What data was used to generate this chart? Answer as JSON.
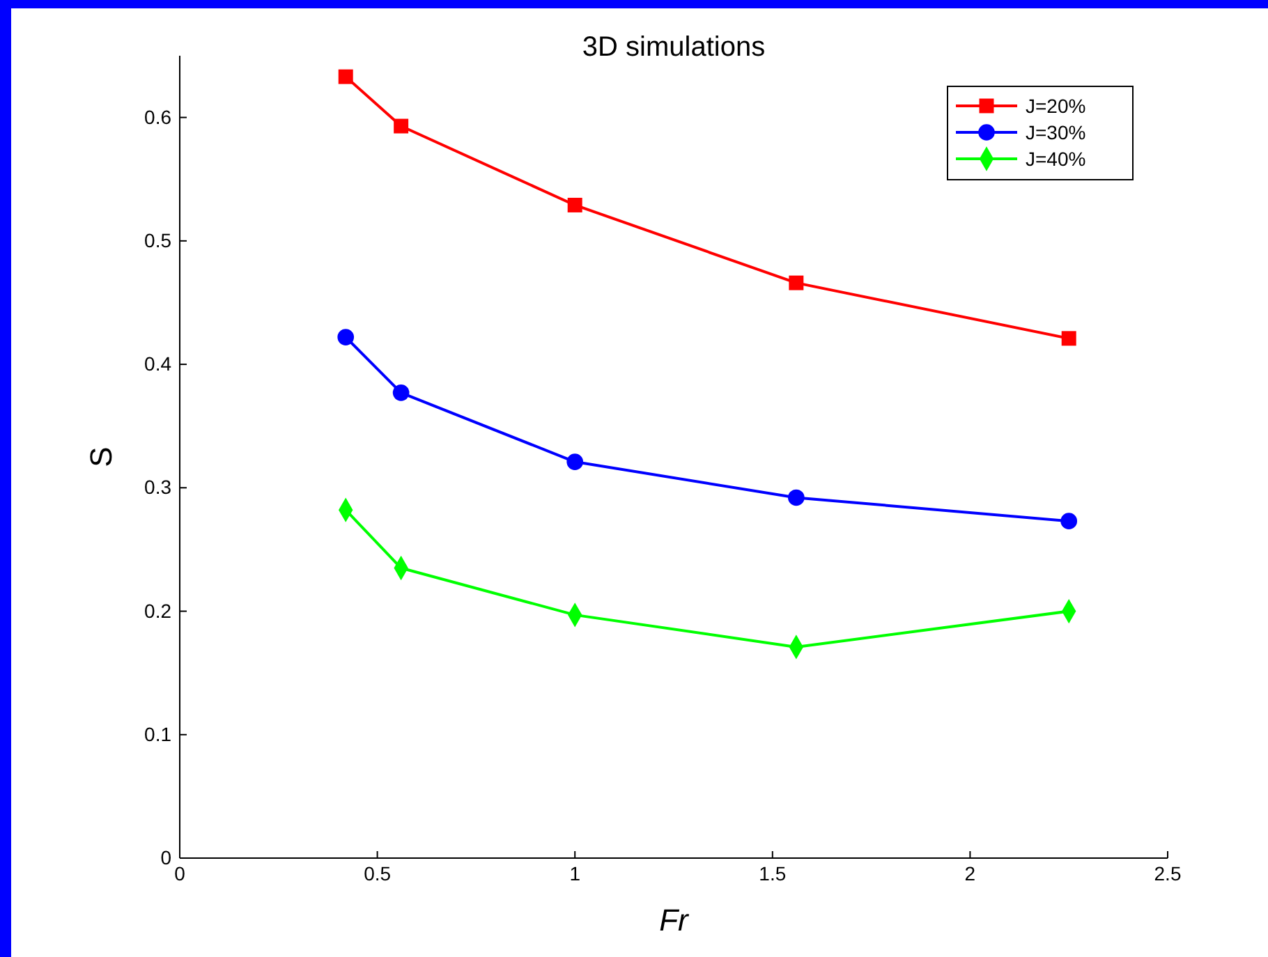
{
  "chart_data": {
    "type": "line",
    "title": "3D simulations",
    "xlabel": "Fr",
    "ylabel": "S",
    "xlim": [
      0,
      2.5
    ],
    "xticks": [
      0,
      0.5,
      1,
      1.5,
      2,
      2.5
    ],
    "ylim": [
      0,
      0.65
    ],
    "yticks": [
      0,
      0.1,
      0.2,
      0.3,
      0.4,
      0.5,
      0.6
    ],
    "grid": false,
    "legend": "top right",
    "series": [
      {
        "name": "J=20%",
        "color": "#ff0000",
        "marker": "square",
        "x": [
          0.42,
          0.56,
          1,
          1.56,
          2.25
        ],
        "values": [
          0.633,
          0.593,
          0.529,
          0.466,
          0.421
        ]
      },
      {
        "name": "J=30%",
        "color": "#0000ff",
        "marker": "circle",
        "x": [
          0.42,
          0.56,
          1,
          1.56,
          2.25
        ],
        "values": [
          0.422,
          0.377,
          0.321,
          0.292,
          0.273
        ]
      },
      {
        "name": "J=40%",
        "color": "#00ff00",
        "marker": "diamond",
        "x": [
          0.42,
          0.56,
          1,
          1.56,
          2.25
        ],
        "values": [
          0.282,
          0.235,
          0.197,
          0.171,
          0.2
        ]
      }
    ]
  }
}
